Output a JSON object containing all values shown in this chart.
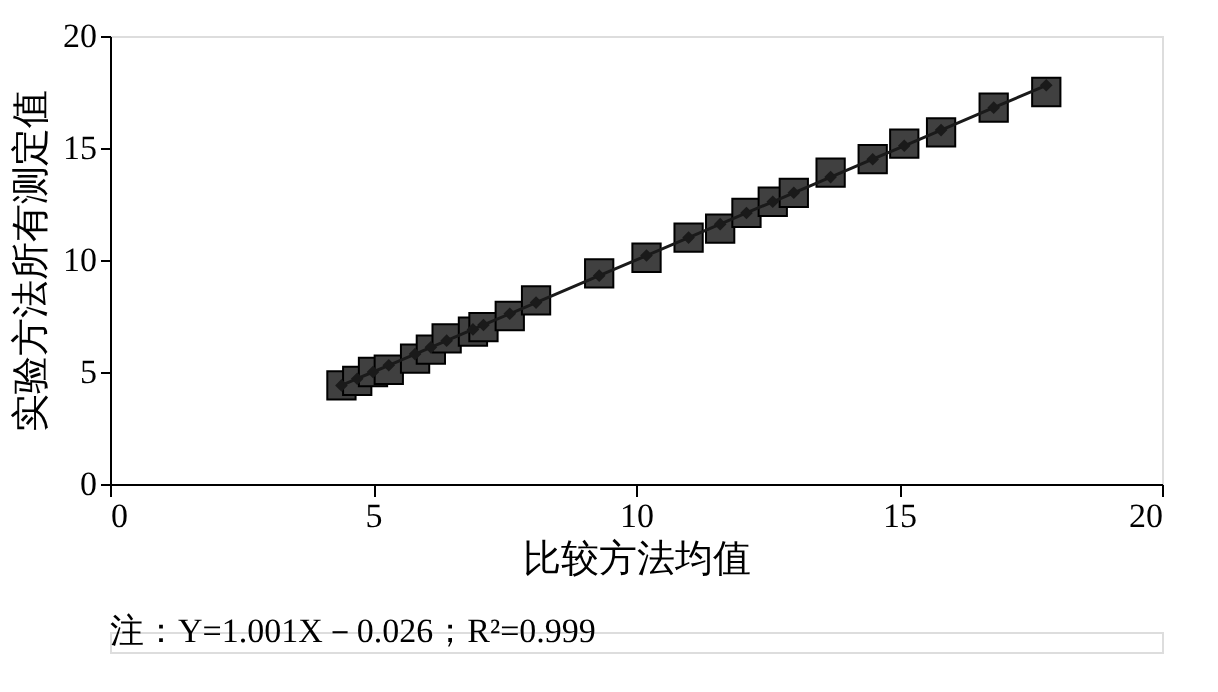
{
  "chart_data": {
    "type": "scatter",
    "xlabel": "比较方法均值",
    "ylabel": "实验方法所有测定值",
    "xlim": [
      0,
      20
    ],
    "ylim": [
      0,
      20
    ],
    "xticks": [
      0,
      5,
      10,
      15,
      20
    ],
    "yticks": [
      0,
      5,
      10,
      15,
      20
    ],
    "grid": false,
    "annotations": [
      "注：Y=1.001X－0.026；R²=0.999"
    ],
    "series": [
      {
        "type": "scatter",
        "marker": "square",
        "color": "#404040",
        "x": [
          4.4,
          4.7,
          5.0,
          5.3,
          5.8,
          6.1,
          6.4,
          6.9,
          7.1,
          7.6,
          8.1,
          9.3,
          10.2,
          11.0,
          11.6,
          12.1,
          12.6,
          13.0,
          13.7,
          14.5,
          15.1,
          15.8,
          16.8,
          17.8
        ],
        "values": [
          4.4,
          4.6,
          5.0,
          5.1,
          5.6,
          6.0,
          6.5,
          6.8,
          7.0,
          7.5,
          8.2,
          9.4,
          10.1,
          11.0,
          11.4,
          12.1,
          12.6,
          13.0,
          13.9,
          14.5,
          15.2,
          15.7,
          16.8,
          17.5
        ]
      },
      {
        "type": "line",
        "marker": "diamond",
        "line_style": "solid",
        "color": "#1a1a1a",
        "x": [
          4.4,
          4.7,
          5.0,
          5.3,
          5.8,
          6.1,
          6.4,
          6.9,
          7.1,
          7.6,
          8.1,
          9.3,
          10.2,
          11.0,
          11.6,
          12.1,
          12.6,
          13.0,
          13.7,
          14.5,
          15.1,
          15.8,
          16.8,
          17.8
        ],
        "values": [
          4.4,
          4.7,
          5.0,
          5.3,
          5.8,
          6.1,
          6.4,
          6.9,
          7.1,
          7.6,
          8.1,
          9.3,
          10.2,
          11.0,
          11.6,
          12.1,
          12.6,
          13.0,
          13.7,
          14.5,
          15.1,
          15.8,
          16.8,
          17.8
        ]
      }
    ]
  }
}
